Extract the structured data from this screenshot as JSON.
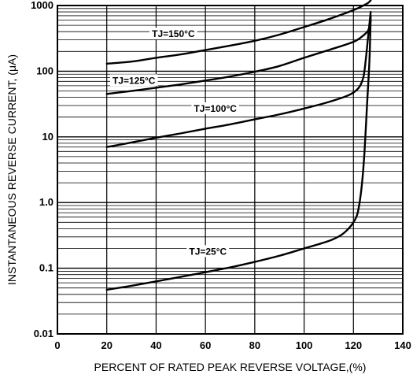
{
  "chart_data": {
    "type": "line",
    "xlabel": "PERCENT OF RATED PEAK REVERSE VOLTAGE,(%)",
    "ylabel": "INSTANTANEOUS REVERSE CURRENT, (μA)",
    "xlim": [
      0,
      140
    ],
    "ylim": [
      0.01,
      1000
    ],
    "yscale": "log",
    "grid": true,
    "xticks": [
      "0",
      "20",
      "40",
      "60",
      "80",
      "100",
      "120",
      "140"
    ],
    "yticks": [
      "0.01",
      "0.1",
      "1.0",
      "10",
      "100",
      "1000"
    ],
    "series": [
      {
        "name": "TJ=150°C",
        "x": [
          20,
          30,
          40,
          50,
          60,
          70,
          80,
          90,
          100,
          110,
          120,
          124,
          126,
          127
        ],
        "y": [
          130,
          140,
          160,
          180,
          210,
          245,
          290,
          360,
          470,
          620,
          850,
          1000,
          1100,
          1200
        ]
      },
      {
        "name": "TJ=125°C",
        "x": [
          20,
          30,
          40,
          50,
          60,
          70,
          80,
          90,
          100,
          110,
          120,
          124,
          126,
          127
        ],
        "y": [
          45,
          50,
          56,
          63,
          72,
          83,
          98,
          120,
          160,
          210,
          280,
          350,
          420,
          580
        ]
      },
      {
        "name": "TJ=100°C",
        "x": [
          20,
          30,
          40,
          50,
          60,
          70,
          80,
          90,
          100,
          110,
          118,
          122,
          124,
          125,
          126,
          127
        ],
        "y": [
          7,
          8.2,
          9.7,
          11.3,
          13.3,
          15.5,
          18.5,
          22,
          27,
          34,
          43,
          55,
          80,
          150,
          350,
          800
        ]
      },
      {
        "name": "TJ=25°C",
        "x": [
          20,
          30,
          40,
          50,
          60,
          70,
          80,
          90,
          100,
          110,
          115,
          118,
          120,
          121.5,
          122.5,
          123.5,
          124.5,
          125.5,
          126.5,
          127
        ],
        "y": [
          0.047,
          0.054,
          0.063,
          0.074,
          0.087,
          0.103,
          0.125,
          0.155,
          0.2,
          0.26,
          0.32,
          0.4,
          0.5,
          0.65,
          1.0,
          2,
          6,
          30,
          150,
          700
        ]
      }
    ],
    "series_labels": [
      {
        "text": "TJ=150°C",
        "x": 47,
        "y": 370
      },
      {
        "text": "TJ=125°C",
        "x": 31,
        "y": 72
      },
      {
        "text": "TJ=100°C",
        "x": 64,
        "y": 27
      },
      {
        "text": "TJ=25°C",
        "x": 61,
        "y": 0.18
      }
    ]
  }
}
